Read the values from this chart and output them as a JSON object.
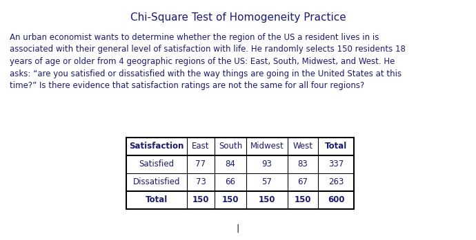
{
  "title": "Chi-Square Test of Homogeneity Practice",
  "title_color": "#1a1a6e",
  "title_fontsize": 11,
  "body_text_lines": [
    "An urban economist wants to determine whether the region of the US a resident lives in is",
    "associated with their general level of satisfaction with life. He randomly selects 150 residents 18",
    "years of age or older from 4 geographic regions of the US: East, South, Midwest, and West. He",
    "asks: “are you satisfied or dissatisfied with the way things are going in the United States at this",
    "time?” Is there evidence that satisfaction ratings are not the same for all four regions?"
  ],
  "body_color": "#1a1a6e",
  "body_fontsize": 8.5,
  "table_headers": [
    "Satisfaction",
    "East",
    "South",
    "Midwest",
    "West",
    "Total"
  ],
  "table_rows": [
    [
      "Satisfied",
      "77",
      "84",
      "93",
      "83",
      "337"
    ],
    [
      "Dissatisfied",
      "73",
      "66",
      "57",
      "67",
      "263"
    ],
    [
      "Total",
      "150",
      "150",
      "150",
      "150",
      "600"
    ]
  ],
  "table_color": "#1a1a6e",
  "background_color": "#ffffff",
  "cursor_text": "|",
  "cursor_color": "#000000",
  "fig_width": 6.9,
  "fig_height": 3.49,
  "dpi": 100
}
